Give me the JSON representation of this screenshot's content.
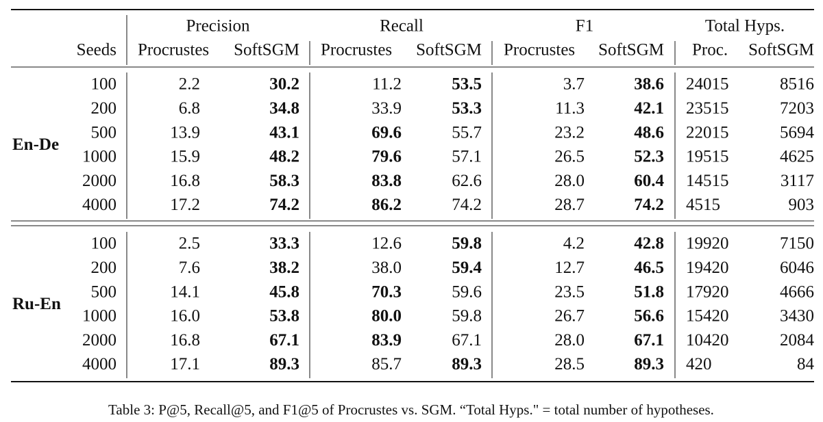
{
  "table": {
    "header": {
      "groups": [
        "Precision",
        "Recall",
        "F1",
        "Total Hyps."
      ],
      "columns": [
        "Seeds",
        "Procrustes",
        "SoftSGM",
        "Procrustes",
        "SoftSGM",
        "Procrustes",
        "SoftSGM",
        "Proc.",
        "SoftSGM"
      ]
    },
    "sections": [
      {
        "name": "En-De",
        "rows": [
          [
            "100",
            "2.2",
            "30.2",
            "11.2",
            "53.5",
            "3.7",
            "38.6",
            "24015",
            "8516"
          ],
          [
            "200",
            "6.8",
            "34.8",
            "33.9",
            "53.3",
            "11.3",
            "42.1",
            "23515",
            "7203"
          ],
          [
            "500",
            "13.9",
            "43.1",
            "69.6",
            "55.7",
            "23.2",
            "48.6",
            "22015",
            "5694"
          ],
          [
            "1000",
            "15.9",
            "48.2",
            "79.6",
            "57.1",
            "26.5",
            "52.3",
            "19515",
            "4625"
          ],
          [
            "2000",
            "16.8",
            "58.3",
            "83.8",
            "62.6",
            "28.0",
            "60.4",
            "14515",
            "3117"
          ],
          [
            "4000",
            "17.2",
            "74.2",
            "86.2",
            "74.2",
            "28.7",
            "74.2",
            "4515",
            "903"
          ]
        ]
      },
      {
        "name": "Ru-En",
        "rows": [
          [
            "100",
            "2.5",
            "33.3",
            "12.6",
            "59.8",
            "4.2",
            "42.8",
            "19920",
            "7150"
          ],
          [
            "200",
            "7.6",
            "38.2",
            "38.0",
            "59.4",
            "12.7",
            "46.5",
            "19420",
            "6046"
          ],
          [
            "500",
            "14.1",
            "45.8",
            "70.3",
            "59.6",
            "23.5",
            "51.8",
            "17920",
            "4666"
          ],
          [
            "1000",
            "16.0",
            "53.8",
            "80.0",
            "59.8",
            "26.7",
            "56.6",
            "15420",
            "3430"
          ],
          [
            "2000",
            "16.8",
            "67.1",
            "83.9",
            "67.1",
            "28.0",
            "67.1",
            "10420",
            "2084"
          ],
          [
            "4000",
            "17.1",
            "89.3",
            "85.7",
            "89.3",
            "28.5",
            "89.3",
            "420",
            "84"
          ]
        ]
      }
    ],
    "caption": "Table 3: P@5, Recall@5, and F1@5 of Procrustes vs. SGM. “Total Hyps.\" = total number of hypotheses."
  }
}
